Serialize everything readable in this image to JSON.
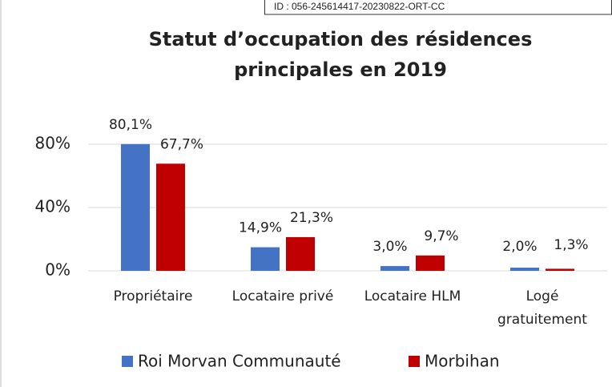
{
  "stamp": "ID : 056-245614417-20230822-ORT-CC",
  "chart_data": {
    "type": "bar",
    "title": "Statut d’occupation des résidences principales en 2019",
    "categories": [
      "Propriétaire",
      "Locataire privé",
      "Locataire HLM",
      "Logé gratuitement"
    ],
    "series": [
      {
        "name": "Roi Morvan Communauté",
        "color": "#4472c4",
        "values": [
          80.1,
          14.9,
          3.0,
          2.0
        ],
        "value_labels": [
          "80,1%",
          "14,9%",
          "3,0%",
          "2,0%"
        ]
      },
      {
        "name": "Morbihan",
        "color": "#c00000",
        "values": [
          67.7,
          21.3,
          9.7,
          1.3
        ],
        "value_labels": [
          "67,7%",
          "21,3%",
          "9,7%",
          "1,3%"
        ]
      }
    ],
    "ylim": [
      0,
      100
    ],
    "yticks": [
      {
        "value": 0,
        "label": "0%"
      },
      {
        "value": 40,
        "label": "40%"
      },
      {
        "value": 80,
        "label": "80%"
      }
    ],
    "grid": true,
    "legend": "bottom"
  }
}
